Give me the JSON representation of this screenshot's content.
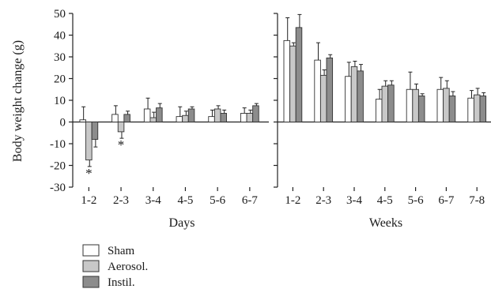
{
  "chart_data": [
    {
      "type": "bar",
      "panel": "days",
      "xlabel": "Days",
      "ylabel": "Body weight change (g)",
      "ylim": [
        -30,
        50
      ],
      "yticks": [
        50,
        40,
        30,
        20,
        10,
        0,
        -10,
        -20,
        -30
      ],
      "grid": false,
      "categories": [
        "1-2",
        "2-3",
        "3-4",
        "4-5",
        "5-6",
        "6-7"
      ],
      "series": [
        {
          "name": "Sham",
          "values": [
            1,
            3.5,
            6,
            2.5,
            2.5,
            4
          ],
          "errors": [
            6,
            4,
            5,
            4.5,
            3,
            2.5
          ]
        },
        {
          "name": "Aerosol.",
          "values": [
            -17.5,
            -4.5,
            2,
            3,
            6,
            4
          ],
          "errors": [
            3,
            3,
            2.5,
            2,
            1.5,
            1.5
          ]
        },
        {
          "name": "Instil.",
          "values": [
            -8,
            3.5,
            6.5,
            6,
            4,
            7.5
          ],
          "errors": [
            3.5,
            1.5,
            2,
            1,
            1.5,
            1
          ]
        }
      ],
      "annotations": [
        {
          "text": "*",
          "category": "1-2",
          "series": "Aerosol."
        },
        {
          "text": "*",
          "category": "2-3",
          "series": "Aerosol."
        }
      ]
    },
    {
      "type": "bar",
      "panel": "weeks",
      "xlabel": "Weeks",
      "ylabel": "Body weight change (g)",
      "ylim": [
        -30,
        50
      ],
      "grid": false,
      "categories": [
        "1-2",
        "2-3",
        "3-4",
        "4-5",
        "5-6",
        "6-7",
        "7-8"
      ],
      "series": [
        {
          "name": "Sham",
          "values": [
            37.5,
            28.5,
            21,
            10.5,
            15,
            15,
            11
          ],
          "errors": [
            10.5,
            8,
            6.5,
            4.5,
            8,
            5.5,
            3.5
          ]
        },
        {
          "name": "Aerosol.",
          "values": [
            35,
            21.5,
            25.5,
            16.5,
            15,
            15.5,
            12.5
          ],
          "errors": [
            1.5,
            2.5,
            2.5,
            2.5,
            2.5,
            3.5,
            3
          ]
        },
        {
          "name": "Instil.",
          "values": [
            43.5,
            29.5,
            23.5,
            17,
            12,
            12,
            12
          ],
          "errors": [
            6,
            1.5,
            3,
            2,
            1,
            2,
            1.5
          ]
        }
      ]
    }
  ],
  "legend": {
    "position": "bottom-left",
    "items": [
      {
        "label": "Sham",
        "color": "#ffffff"
      },
      {
        "label": "Aerosol.",
        "color": "#c8c8c8"
      },
      {
        "label": "Instil.",
        "color": "#8c8c8c"
      }
    ]
  },
  "colors": {
    "axis": "#222222",
    "bar_stroke": "#333333",
    "sham": "#ffffff",
    "aerosol": "#c8c8c8",
    "instil": "#8c8c8c"
  }
}
